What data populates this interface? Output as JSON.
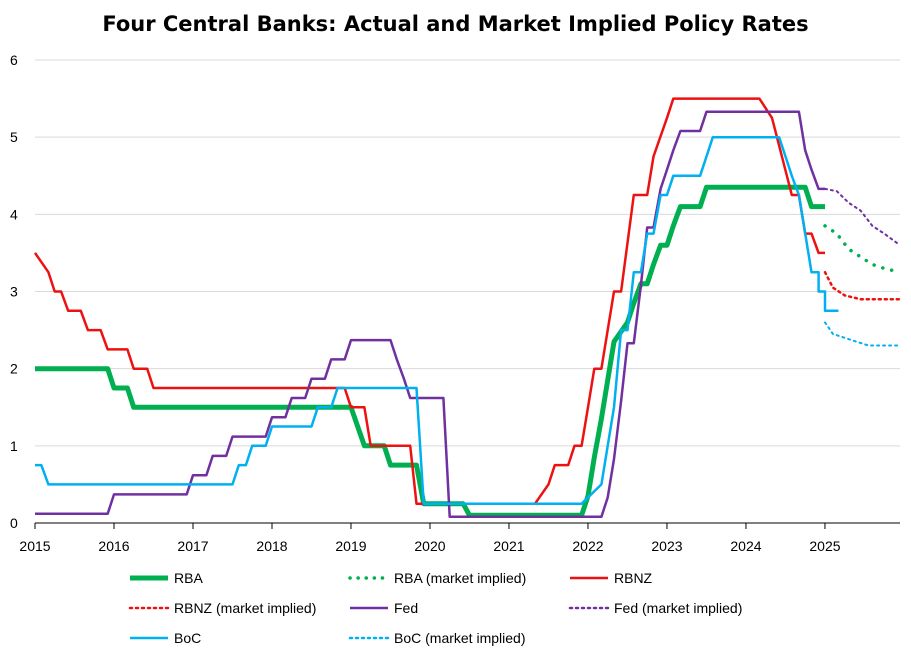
{
  "chart_data": {
    "type": "line",
    "title": "Four Central Banks: Actual and Market Implied Policy Rates",
    "xlabel": "",
    "ylabel": "",
    "xlim": [
      2015,
      2025.95
    ],
    "ylim": [
      0,
      6
    ],
    "x_ticks": [
      2015,
      2016,
      2017,
      2018,
      2019,
      2020,
      2021,
      2022,
      2023,
      2024,
      2025
    ],
    "y_ticks": [
      0,
      1,
      2,
      3,
      4,
      5,
      6
    ],
    "grid": "horizontal",
    "legend_position": "bottom",
    "series": [
      {
        "name": "RBA",
        "color": "#00b050",
        "style": "solid",
        "width": 5,
        "points": [
          [
            2015.0,
            2.0
          ],
          [
            2015.92,
            2.0
          ],
          [
            2016.0,
            1.75
          ],
          [
            2016.17,
            1.75
          ],
          [
            2016.25,
            1.5
          ],
          [
            2019.0,
            1.5
          ],
          [
            2019.17,
            1.0
          ],
          [
            2019.42,
            1.0
          ],
          [
            2019.5,
            0.75
          ],
          [
            2019.83,
            0.75
          ],
          [
            2019.92,
            0.25
          ],
          [
            2020.42,
            0.25
          ],
          [
            2020.5,
            0.1
          ],
          [
            2021.83,
            0.1
          ],
          [
            2021.92,
            0.1
          ],
          [
            2022.0,
            0.35
          ],
          [
            2022.08,
            0.85
          ],
          [
            2022.17,
            1.35
          ],
          [
            2022.25,
            1.85
          ],
          [
            2022.33,
            2.35
          ],
          [
            2022.5,
            2.6
          ],
          [
            2022.58,
            2.85
          ],
          [
            2022.67,
            3.1
          ],
          [
            2022.75,
            3.1
          ],
          [
            2022.83,
            3.35
          ],
          [
            2022.92,
            3.6
          ],
          [
            2023.0,
            3.6
          ],
          [
            2023.08,
            3.85
          ],
          [
            2023.17,
            4.1
          ],
          [
            2023.42,
            4.1
          ],
          [
            2023.5,
            4.35
          ],
          [
            2024.75,
            4.35
          ],
          [
            2024.83,
            4.1
          ],
          [
            2025.0,
            4.1
          ]
        ]
      },
      {
        "name": "RBA (market implied)",
        "color": "#00b050",
        "style": "dotted",
        "width": 3.5,
        "points": [
          [
            2025.0,
            3.85
          ],
          [
            2025.15,
            3.75
          ],
          [
            2025.3,
            3.55
          ],
          [
            2025.45,
            3.45
          ],
          [
            2025.6,
            3.35
          ],
          [
            2025.75,
            3.3
          ],
          [
            2025.95,
            3.25
          ]
        ]
      },
      {
        "name": "RBNZ",
        "color": "#ee1111",
        "style": "solid",
        "width": 2.5,
        "points": [
          [
            2015.0,
            3.5
          ],
          [
            2015.17,
            3.25
          ],
          [
            2015.25,
            3.0
          ],
          [
            2015.33,
            3.0
          ],
          [
            2015.42,
            2.75
          ],
          [
            2015.58,
            2.75
          ],
          [
            2015.67,
            2.5
          ],
          [
            2015.83,
            2.5
          ],
          [
            2015.92,
            2.25
          ],
          [
            2016.17,
            2.25
          ],
          [
            2016.25,
            2.0
          ],
          [
            2016.42,
            2.0
          ],
          [
            2016.5,
            1.75
          ],
          [
            2018.92,
            1.75
          ],
          [
            2019.0,
            1.5
          ],
          [
            2019.17,
            1.5
          ],
          [
            2019.25,
            1.0
          ],
          [
            2019.75,
            1.0
          ],
          [
            2019.83,
            0.25
          ],
          [
            2021.33,
            0.25
          ],
          [
            2021.5,
            0.5
          ],
          [
            2021.58,
            0.75
          ],
          [
            2021.75,
            0.75
          ],
          [
            2021.83,
            1.0
          ],
          [
            2021.92,
            1.0
          ],
          [
            2022.0,
            1.5
          ],
          [
            2022.08,
            2.0
          ],
          [
            2022.17,
            2.0
          ],
          [
            2022.25,
            2.5
          ],
          [
            2022.33,
            3.0
          ],
          [
            2022.42,
            3.0
          ],
          [
            2022.58,
            4.25
          ],
          [
            2022.67,
            4.25
          ],
          [
            2022.75,
            4.25
          ],
          [
            2022.83,
            4.75
          ],
          [
            2023.0,
            5.25
          ],
          [
            2023.08,
            5.5
          ],
          [
            2024.17,
            5.5
          ],
          [
            2024.33,
            5.25
          ],
          [
            2024.58,
            4.25
          ],
          [
            2024.67,
            4.25
          ],
          [
            2024.75,
            3.75
          ],
          [
            2024.83,
            3.75
          ],
          [
            2024.92,
            3.5
          ],
          [
            2025.0,
            3.5
          ]
        ]
      },
      {
        "name": "RBNZ (market implied)",
        "color": "#ee1111",
        "style": "dotted",
        "width": 2.5,
        "points": [
          [
            2025.0,
            3.25
          ],
          [
            2025.1,
            3.05
          ],
          [
            2025.25,
            2.95
          ],
          [
            2025.45,
            2.9
          ],
          [
            2025.7,
            2.9
          ],
          [
            2025.95,
            2.9
          ]
        ]
      },
      {
        "name": "Fed",
        "color": "#7030a0",
        "style": "solid",
        "width": 2.5,
        "points": [
          [
            2015.0,
            0.12
          ],
          [
            2015.92,
            0.12
          ],
          [
            2016.0,
            0.37
          ],
          [
            2016.92,
            0.37
          ],
          [
            2017.0,
            0.62
          ],
          [
            2017.17,
            0.62
          ],
          [
            2017.25,
            0.87
          ],
          [
            2017.42,
            0.87
          ],
          [
            2017.5,
            1.12
          ],
          [
            2017.92,
            1.12
          ],
          [
            2018.0,
            1.37
          ],
          [
            2018.17,
            1.37
          ],
          [
            2018.25,
            1.62
          ],
          [
            2018.42,
            1.62
          ],
          [
            2018.5,
            1.87
          ],
          [
            2018.67,
            1.87
          ],
          [
            2018.75,
            2.12
          ],
          [
            2018.92,
            2.12
          ],
          [
            2019.0,
            2.37
          ],
          [
            2019.5,
            2.37
          ],
          [
            2019.58,
            2.12
          ],
          [
            2019.67,
            1.87
          ],
          [
            2019.75,
            1.62
          ],
          [
            2020.17,
            1.62
          ],
          [
            2020.25,
            0.08
          ],
          [
            2022.17,
            0.08
          ],
          [
            2022.25,
            0.33
          ],
          [
            2022.33,
            0.83
          ],
          [
            2022.42,
            1.58
          ],
          [
            2022.5,
            2.33
          ],
          [
            2022.58,
            2.33
          ],
          [
            2022.67,
            3.08
          ],
          [
            2022.75,
            3.83
          ],
          [
            2022.83,
            3.83
          ],
          [
            2022.92,
            4.33
          ],
          [
            2023.0,
            4.58
          ],
          [
            2023.08,
            4.83
          ],
          [
            2023.17,
            5.08
          ],
          [
            2023.42,
            5.08
          ],
          [
            2023.5,
            5.33
          ],
          [
            2024.67,
            5.33
          ],
          [
            2024.75,
            4.83
          ],
          [
            2024.83,
            4.58
          ],
          [
            2024.92,
            4.33
          ],
          [
            2025.0,
            4.33
          ]
        ]
      },
      {
        "name": "Fed (market implied)",
        "color": "#7030a0",
        "style": "dotted",
        "width": 2,
        "points": [
          [
            2025.0,
            4.33
          ],
          [
            2025.15,
            4.3
          ],
          [
            2025.3,
            4.15
          ],
          [
            2025.45,
            4.05
          ],
          [
            2025.6,
            3.85
          ],
          [
            2025.75,
            3.75
          ],
          [
            2025.95,
            3.6
          ]
        ]
      },
      {
        "name": "BoC",
        "color": "#00b0f0",
        "style": "solid",
        "width": 2.5,
        "points": [
          [
            2015.0,
            0.75
          ],
          [
            2015.08,
            0.75
          ],
          [
            2015.17,
            0.5
          ],
          [
            2015.5,
            0.5
          ],
          [
            2017.08,
            0.5
          ],
          [
            2017.5,
            0.5
          ],
          [
            2017.58,
            0.75
          ],
          [
            2017.67,
            0.75
          ],
          [
            2017.75,
            1.0
          ],
          [
            2017.92,
            1.0
          ],
          [
            2018.0,
            1.25
          ],
          [
            2018.5,
            1.25
          ],
          [
            2018.58,
            1.5
          ],
          [
            2018.75,
            1.5
          ],
          [
            2018.83,
            1.75
          ],
          [
            2019.83,
            1.75
          ],
          [
            2019.92,
            0.25
          ],
          [
            2021.92,
            0.25
          ],
          [
            2022.17,
            0.5
          ],
          [
            2022.25,
            1.0
          ],
          [
            2022.33,
            1.5
          ],
          [
            2022.42,
            2.5
          ],
          [
            2022.5,
            2.5
          ],
          [
            2022.58,
            3.25
          ],
          [
            2022.67,
            3.25
          ],
          [
            2022.75,
            3.75
          ],
          [
            2022.83,
            3.75
          ],
          [
            2022.92,
            4.25
          ],
          [
            2023.0,
            4.25
          ],
          [
            2023.08,
            4.5
          ],
          [
            2023.42,
            4.5
          ],
          [
            2023.5,
            4.75
          ],
          [
            2023.58,
            5.0
          ],
          [
            2024.42,
            5.0
          ],
          [
            2024.5,
            4.75
          ],
          [
            2024.58,
            4.5
          ],
          [
            2024.67,
            4.25
          ],
          [
            2024.75,
            3.75
          ],
          [
            2024.83,
            3.25
          ],
          [
            2024.92,
            3.25
          ],
          [
            2024.92,
            3.0
          ],
          [
            2025.0,
            3.0
          ],
          [
            2025.0,
            2.75
          ],
          [
            2025.17,
            2.75
          ]
        ]
      },
      {
        "name": "BoC (market implied)",
        "color": "#00b0f0",
        "style": "dotted",
        "width": 2,
        "points": [
          [
            2025.0,
            2.6
          ],
          [
            2025.1,
            2.45
          ],
          [
            2025.25,
            2.4
          ],
          [
            2025.4,
            2.35
          ],
          [
            2025.55,
            2.3
          ],
          [
            2025.75,
            2.3
          ],
          [
            2025.95,
            2.3
          ]
        ]
      }
    ]
  }
}
